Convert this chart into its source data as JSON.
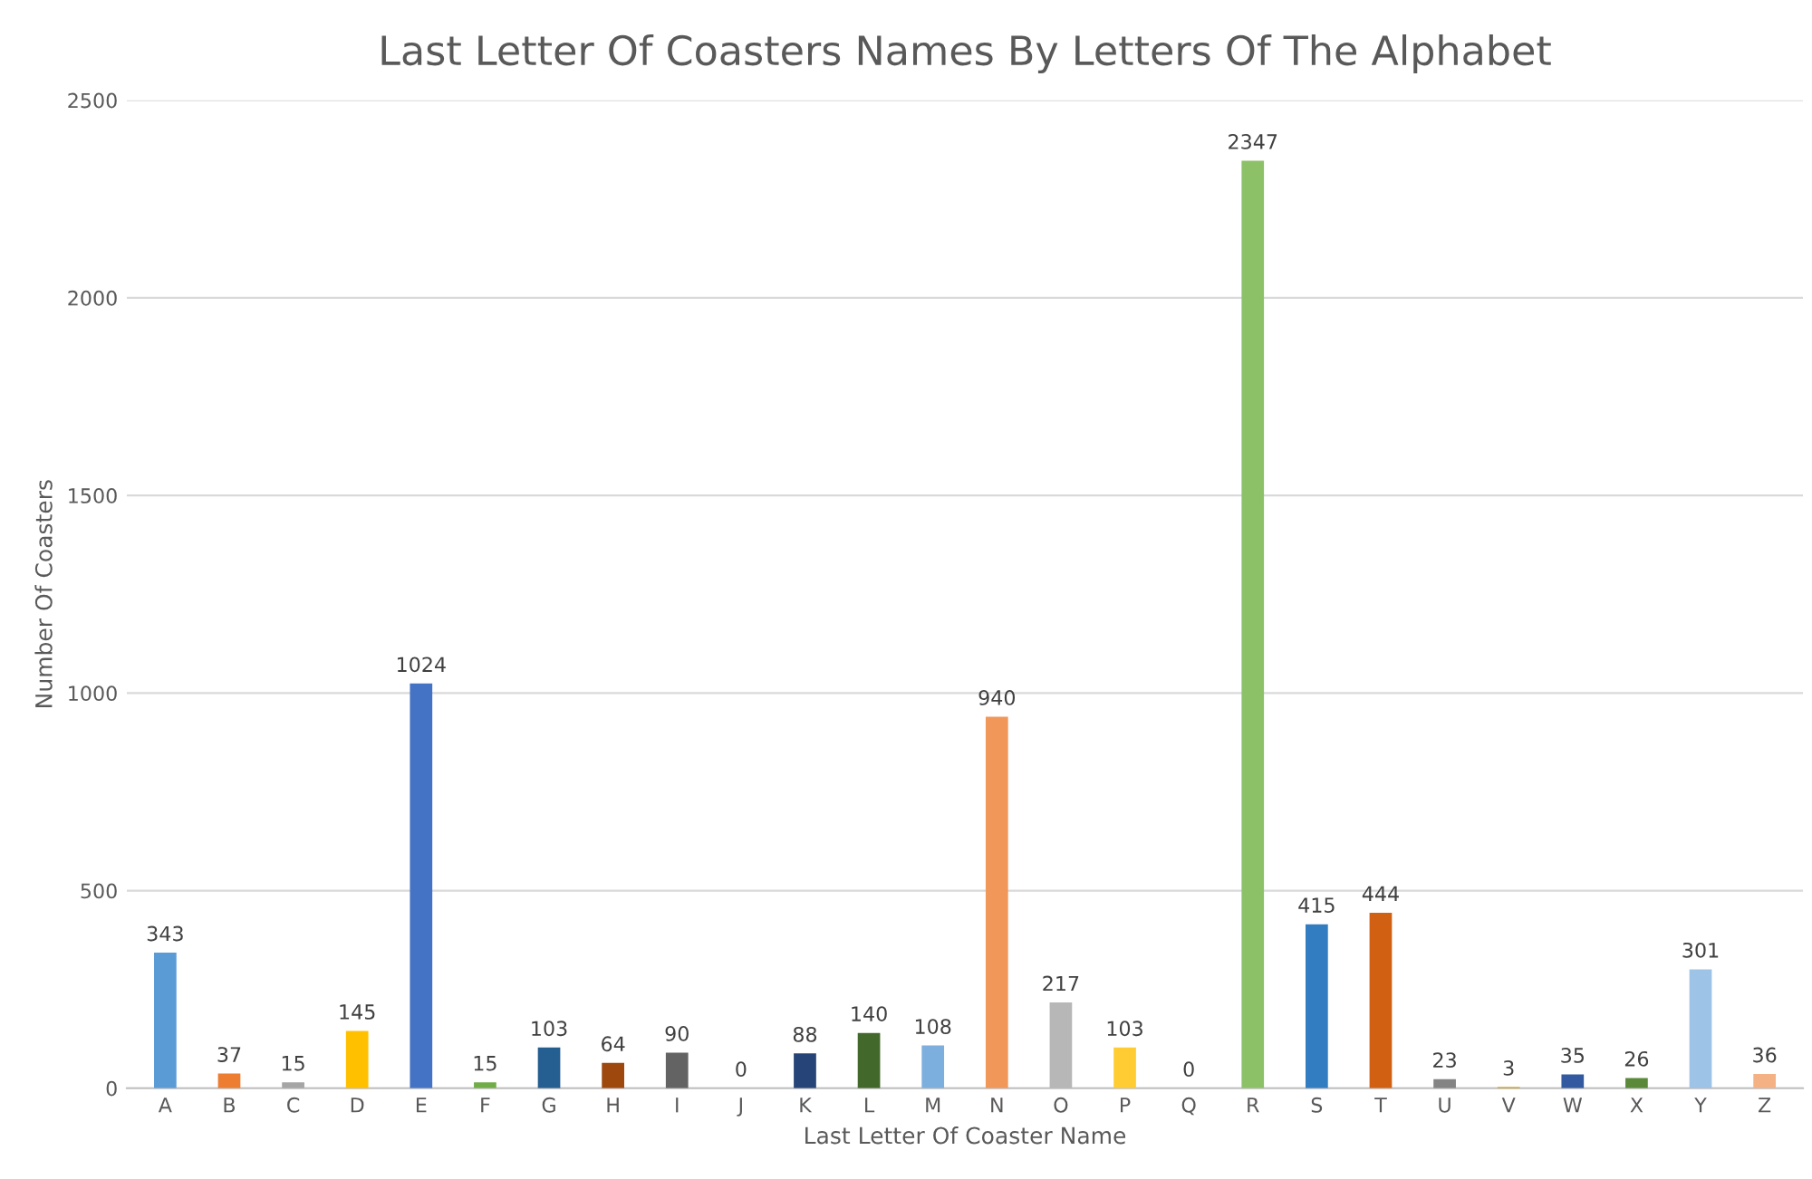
{
  "chart_data": {
    "type": "bar",
    "title": "Last Letter Of Coasters Names By Letters Of The Alphabet",
    "xlabel": "Last Letter Of Coaster Name",
    "ylabel": "Number Of Coasters",
    "categories": [
      "A",
      "B",
      "C",
      "D",
      "E",
      "F",
      "G",
      "H",
      "I",
      "J",
      "K",
      "L",
      "M",
      "N",
      "O",
      "P",
      "Q",
      "R",
      "S",
      "T",
      "U",
      "V",
      "W",
      "X",
      "Y",
      "Z"
    ],
    "values": [
      343,
      37,
      15,
      145,
      1024,
      15,
      103,
      64,
      90,
      0,
      88,
      140,
      108,
      940,
      217,
      103,
      0,
      2347,
      415,
      444,
      23,
      3,
      35,
      26,
      301,
      36
    ],
    "colors": [
      "#5b9bd5",
      "#ed7d31",
      "#a5a5a5",
      "#ffc000",
      "#4472c4",
      "#70ad47",
      "#255e91",
      "#9e480e",
      "#636363",
      "#997300",
      "#264478",
      "#43682b",
      "#7cafdd",
      "#f1975a",
      "#b7b7b7",
      "#ffcd33",
      "#698ed0",
      "#8cc168",
      "#327dc2",
      "#d26012",
      "#848484",
      "#cc9a00",
      "#335aa1",
      "#5a8a39",
      "#9dc3e6",
      "#f4b183"
    ],
    "ylim": [
      0,
      2500
    ],
    "yticks": [
      0,
      500,
      1000,
      1500,
      2000,
      2500
    ],
    "grid": "y",
    "data_labels": true
  }
}
